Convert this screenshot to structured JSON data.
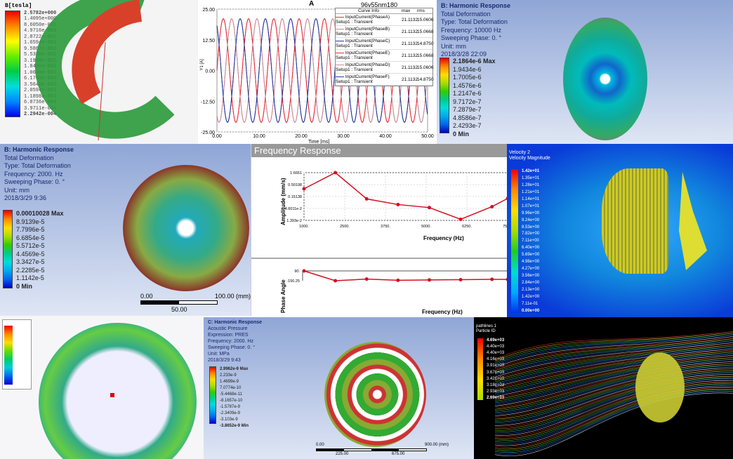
{
  "magnetic": {
    "legend_title": "B[tesla]",
    "legend": [
      "2.5782e+000",
      "1.4095e+000",
      "8.6050e-001",
      "4.9716e-001",
      "2.8722e-001",
      "1.6594e-001",
      "9.5867e-002",
      "5.5385e-002",
      "3.1998e-002",
      "1.8486e-002",
      "1.0680e-002",
      "6.1700e-003",
      "3.5646e-003",
      "2.0594e-003",
      "1.1898e-003",
      "6.8736e-004",
      "3.9711e-004",
      "2.2942e-004"
    ]
  },
  "current_chart": {
    "title": "A",
    "project": "96v55nm180",
    "legend_headers": [
      "Curve Info",
      "max",
      "rms"
    ],
    "curves": [
      {
        "name": "InputCurrent(PhaseA)",
        "setup": "Setup1 : Transient",
        "max": "21.1132",
        "rms": "15.0606",
        "color": "#e8303a"
      },
      {
        "name": "InputCurrent(PhaseB)",
        "setup": "Setup1 : Transient",
        "max": "21.1132",
        "rms": "15.0668",
        "color": "#c98a95"
      },
      {
        "name": "InputCurrent(PhaseC)",
        "setup": "Setup1 : Transient",
        "max": "21.1132",
        "rms": "14.8750",
        "color": "#2a3a9a"
      },
      {
        "name": "InputCurrent(PhaseE)",
        "setup": "Setup1 : Transient",
        "max": "21.1132",
        "rms": "15.0668",
        "color": "#e8303a"
      },
      {
        "name": "InputCurrent(PhaseD)",
        "setup": "Setup1 : Transient",
        "max": "21.1132",
        "rms": "15.0606",
        "color": "#c98a95"
      },
      {
        "name": "InputCurrent(PhaseF)",
        "setup": "Setup1 : Transient",
        "max": "21.1132",
        "rms": "14.8750",
        "color": "#2a3a9a"
      }
    ]
  },
  "harmonic_top": {
    "header": [
      "B: Harmonic Response",
      "Total Deformation",
      "Type: Total Deformation",
      "Frequency: 10000 Hz",
      "Sweeping Phase: 0. °",
      "Unit: mm",
      "2018/3/28 22:09"
    ],
    "legend": [
      "2.1864e-6 Max",
      "1.9434e-6",
      "1.7005e-6",
      "1.4576e-6",
      "1.2147e-6",
      "9.7172e-7",
      "7.2879e-7",
      "4.8586e-7",
      "2.4293e-7",
      "0 Min"
    ]
  },
  "harmonic_mid": {
    "header": [
      "B: Harmonic Response",
      "Total Deformation",
      "Type: Total Deformation",
      "Frequency: 2000. Hz",
      "Sweeping Phase: 0. °",
      "Unit: mm",
      "2018/3/29 9:36"
    ],
    "legend": [
      "0.00010028 Max",
      "8.9139e-5",
      "7.7996e-5",
      "6.6854e-5",
      "5.5712e-5",
      "4.4569e-5",
      "3.3427e-5",
      "2.2285e-5",
      "1.1142e-5",
      "0 Min"
    ],
    "scale": {
      "start": "0.00",
      "end": "100.00 (mm)",
      "mid": "50.00"
    }
  },
  "cfd": {
    "legend_title": "Velocity 2",
    "legend_sub": "Velocity Magnitude",
    "legend": [
      "1.42e+01",
      "1.35e+01",
      "1.28e+01",
      "1.21e+01",
      "1.14e+01",
      "1.07e+01",
      "9.96e+00",
      "9.24e+00",
      "8.53e+00",
      "7.82e+00",
      "7.11e+00",
      "6.40e+00",
      "5.69e+00",
      "4.98e+00",
      "4.27e+00",
      "3.56e+00",
      "2.84e+00",
      "2.13e+00",
      "1.42e+00",
      "7.11e-01",
      "0.00e+00"
    ]
  },
  "acoustic": {
    "header": [
      "C: Harmonic Response",
      "Acoustic Pressure",
      "Expression: PRES",
      "Frequency: 2000. Hz",
      "Sweeping Phase: 0. °",
      "Unit: MPa",
      "2018/3/29 9:43"
    ],
    "legend": [
      "2.9962e-9 Max",
      "2.233e-9",
      "1.4699e-9",
      "7.0774e-10",
      "-5.4468e-11",
      "-8.1657e-10",
      "-1.5787e-9",
      "-2.3409e-9",
      "-3.103e-9",
      "-3.8652e-9 Min"
    ],
    "scale": {
      "start": "0.00",
      "end": "900.00 (mm)",
      "t1": "225.00",
      "t2": "675.00"
    }
  },
  "particles": {
    "legend_title": "pathlines 1",
    "legend_sub": "Particle ID",
    "legend": [
      "4.69e+03",
      "4.40e+03",
      "4.40e+03",
      "4.16e+03",
      "3.91e+03",
      "3.67e+03",
      "3.42e+03",
      "3.18e+03",
      "2.93e+03",
      "2.69e+03"
    ]
  },
  "chart_data": [
    {
      "type": "line",
      "title": "A",
      "xlabel": "Time [ms]",
      "ylabel": "Y1 [A]",
      "xlim": [
        0,
        50
      ],
      "ylim": [
        -25,
        25
      ],
      "xticks": [
        "0.00",
        "10.00",
        "20.00",
        "30.00",
        "40.00",
        "50.00"
      ],
      "yticks": [
        "25.00",
        "12.50",
        "0.00",
        "-12.50",
        "-25.00"
      ],
      "grid": true,
      "legend_placement": "top-right",
      "amplitude": 21.1132,
      "period_ms": 6,
      "series": [
        {
          "name": "InputCurrent(PhaseA)",
          "phase_deg": 0
        },
        {
          "name": "InputCurrent(PhaseB)",
          "phase_deg": 120
        },
        {
          "name": "InputCurrent(PhaseC)",
          "phase_deg": 240
        },
        {
          "name": "InputCurrent(PhaseE)",
          "phase_deg": 0
        },
        {
          "name": "InputCurrent(PhaseD)",
          "phase_deg": 120
        },
        {
          "name": "InputCurrent(PhaseF)",
          "phase_deg": 240
        }
      ]
    },
    {
      "type": "line",
      "title": "Frequency Response",
      "xlabel": "Frequency (Hz)",
      "ylabel": "Amplitude (mm/s)",
      "yscale": "log",
      "xticks": [
        "1000.",
        "2500.",
        "3750.",
        "5000.",
        "6250.",
        "7500."
      ],
      "yticks": [
        "1.6651",
        "0.50198",
        "0.15138",
        "4.6011e-2",
        "1.393e-2"
      ],
      "x": [
        1000,
        2000,
        3000,
        4000,
        5000,
        6000,
        7000,
        7500
      ],
      "y": [
        0.33,
        1.6651,
        0.12,
        0.068,
        0.05,
        0.0155,
        0.055,
        0.125
      ]
    },
    {
      "type": "line",
      "xlabel": "Frequency (Hz)",
      "ylabel": "Phase Angle",
      "yticks": [
        "90.",
        "-150.25"
      ],
      "x": [
        1000,
        2000,
        3000,
        4000,
        5000,
        6000,
        7000,
        7500
      ],
      "y": [
        90,
        -150,
        -110,
        -140,
        -130,
        -125,
        -115,
        -118
      ]
    }
  ]
}
